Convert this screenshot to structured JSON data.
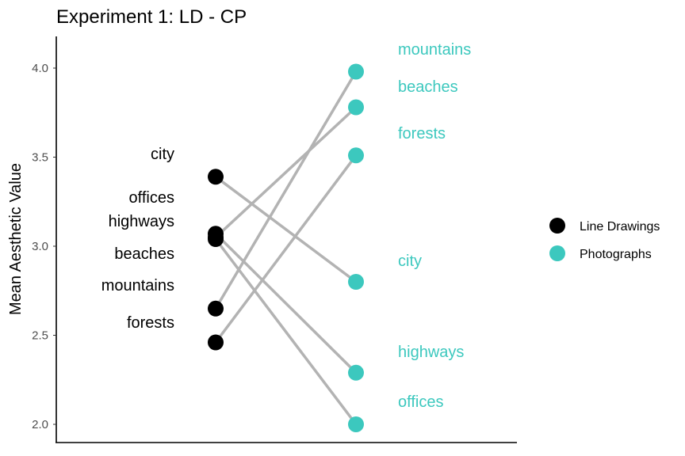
{
  "chart_data": {
    "type": "slope",
    "title": "Experiment 1: LD - CP",
    "ylabel": "Mean Aesthetic Value",
    "ylim": [
      1.95,
      4.1
    ],
    "yticks": [
      2.0,
      2.5,
      3.0,
      3.5,
      4.0
    ],
    "grid": false,
    "legend_position": "right",
    "categories": [
      "city",
      "offices",
      "highways",
      "beaches",
      "mountains",
      "forests"
    ],
    "series": [
      {
        "name": "Line Drawings",
        "color": "#000000",
        "values": [
          3.39,
          3.04,
          3.07,
          3.05,
          2.65,
          2.46
        ]
      },
      {
        "name": "Photographs",
        "color": "#3cc8be",
        "values": [
          2.8,
          2.0,
          2.29,
          3.78,
          3.98,
          3.51
        ]
      }
    ],
    "left_labels": [
      {
        "category": "city",
        "text": "city"
      },
      {
        "category": "offices",
        "text": "offices"
      },
      {
        "category": "highways",
        "text": "highways"
      },
      {
        "category": "beaches",
        "text": "beaches"
      },
      {
        "category": "mountains",
        "text": "mountains"
      },
      {
        "category": "forests",
        "text": "forests"
      }
    ],
    "right_labels": [
      {
        "category": "mountains",
        "text": "mountains"
      },
      {
        "category": "beaches",
        "text": "beaches"
      },
      {
        "category": "forests",
        "text": "forests"
      },
      {
        "category": "city",
        "text": "city"
      },
      {
        "category": "highways",
        "text": "highways"
      },
      {
        "category": "offices",
        "text": "offices"
      }
    ],
    "line_color": "#b3b3b3"
  }
}
